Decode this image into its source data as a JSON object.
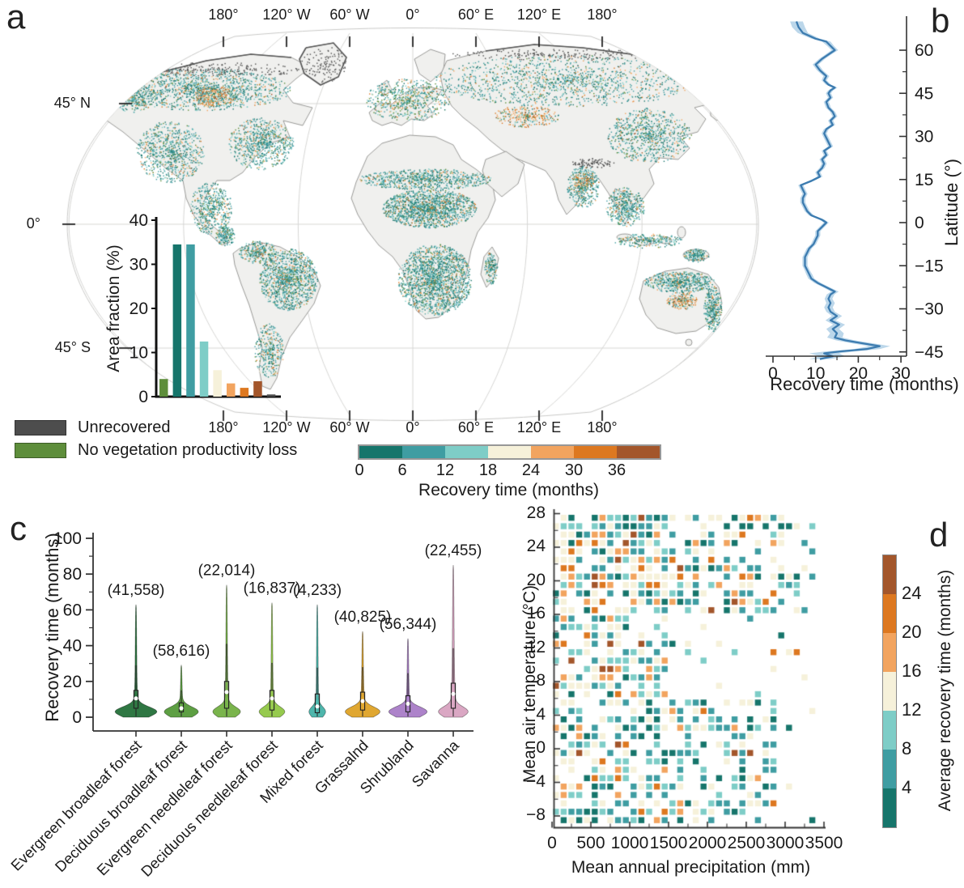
{
  "chart_data": [
    {
      "type": "map",
      "panel": "a",
      "description": "Global map of vegetation recovery time after drought",
      "top_axis_labels": [
        "180°",
        "120° W",
        "60° W",
        "0°",
        "60° E",
        "120° E",
        "180°"
      ],
      "bottom_axis_labels": [
        "180°",
        "120° W",
        "60° W",
        "0°",
        "60° E",
        "120° E",
        "180°"
      ],
      "left_axis_labels": [
        "45° N",
        "0°",
        "45° S"
      ],
      "legend": [
        {
          "label": "Unrecovered",
          "color": "#4d4d4d"
        },
        {
          "label": "No vegetation productivity loss",
          "color": "#5e8e3b"
        }
      ],
      "colorbar": {
        "title": "Recovery time (months)",
        "ticks": [
          "0",
          "6",
          "12",
          "18",
          "24",
          "30",
          "36"
        ],
        "colors": [
          "#16756b",
          "#3f9da2",
          "#7ecdc7",
          "#f6f1da",
          "#f2a45f",
          "#dd7820",
          "#a3562b"
        ]
      },
      "inset": {
        "type": "bar",
        "ylabel": "Area fraction (%)",
        "yticks": [
          0,
          10,
          20,
          30,
          40
        ],
        "ylim": [
          0,
          40
        ],
        "categories": [
          "No loss",
          "0-6",
          "6-12",
          "12-18",
          "18-24",
          "24-30",
          "30-36",
          ">36",
          "Unrecovered"
        ],
        "values": [
          4,
          34.5,
          34.5,
          12.5,
          6,
          3,
          2,
          3.5,
          0.5
        ],
        "colors": [
          "#5e8e3b",
          "#16756b",
          "#3f9da2",
          "#7ecdc7",
          "#f6f1da",
          "#f2a45f",
          "#dd7820",
          "#a3562b",
          "#4d4d4d"
        ]
      },
      "speckle_palettes": {
        "main": [
          [
            "#16756b",
            26
          ],
          [
            "#3f9da2",
            34
          ],
          [
            "#7ecdc7",
            14
          ],
          [
            "#5e8e3b",
            8
          ],
          [
            "#f6f1da",
            7
          ],
          [
            "#f2a45f",
            6
          ],
          [
            "#dd7820",
            3
          ],
          [
            "#a3562b",
            2
          ]
        ],
        "orange": [
          [
            "#16756b",
            8
          ],
          [
            "#3f9da2",
            14
          ],
          [
            "#7ecdc7",
            8
          ],
          [
            "#5e8e3b",
            4
          ],
          [
            "#f6f1da",
            16
          ],
          [
            "#f2a45f",
            22
          ],
          [
            "#dd7820",
            18
          ],
          [
            "#a3562b",
            10
          ]
        ],
        "euro": [
          [
            "#16756b",
            18
          ],
          [
            "#3f9da2",
            26
          ],
          [
            "#7ecdc7",
            12
          ],
          [
            "#5e8e3b",
            22
          ],
          [
            "#f6f1da",
            10
          ],
          [
            "#f2a45f",
            8
          ],
          [
            "#dd7820",
            3
          ],
          [
            "#a3562b",
            1
          ]
        ],
        "dark": [
          [
            "#4d4d4d",
            1
          ]
        ]
      },
      "speckle_regions": [
        [
          185,
          95,
          115,
          26,
          1500,
          "main"
        ],
        [
          105,
          105,
          28,
          18,
          320,
          "main"
        ],
        [
          150,
          172,
          42,
          38,
          850,
          "main"
        ],
        [
          262,
          162,
          40,
          32,
          800,
          "main"
        ],
        [
          205,
          104,
          26,
          13,
          380,
          "orange"
        ],
        [
          200,
          242,
          26,
          32,
          550,
          "main"
        ],
        [
          218,
          276,
          12,
          12,
          200,
          "main"
        ],
        [
          296,
          330,
          36,
          38,
          1300,
          "main"
        ],
        [
          258,
          296,
          24,
          14,
          320,
          "main"
        ],
        [
          272,
          418,
          18,
          34,
          380,
          "main"
        ],
        [
          465,
          206,
          82,
          13,
          850,
          "main"
        ],
        [
          470,
          242,
          58,
          24,
          1700,
          "main"
        ],
        [
          477,
          330,
          46,
          44,
          2000,
          "main"
        ],
        [
          546,
          316,
          8,
          20,
          180,
          "main"
        ],
        [
          443,
          108,
          52,
          26,
          700,
          "euro"
        ],
        [
          640,
          84,
          165,
          32,
          1500,
          "main"
        ],
        [
          590,
          128,
          40,
          14,
          350,
          "orange"
        ],
        [
          742,
          152,
          52,
          34,
          850,
          "main"
        ],
        [
          660,
          215,
          20,
          26,
          450,
          "main"
        ],
        [
          660,
          208,
          14,
          10,
          150,
          "orange"
        ],
        [
          712,
          240,
          24,
          24,
          500,
          "main"
        ],
        [
          740,
          282,
          42,
          9,
          260,
          "main"
        ],
        [
          800,
          300,
          16,
          8,
          200,
          "main"
        ],
        [
          779,
          333,
          44,
          13,
          650,
          "main"
        ],
        [
          820,
          366,
          11,
          28,
          380,
          "main"
        ],
        [
          782,
          356,
          19,
          11,
          320,
          "orange"
        ],
        [
          856,
          402,
          8,
          16,
          120,
          "main"
        ],
        [
          200,
          70,
          130,
          8,
          220,
          "dark"
        ],
        [
          640,
          52,
          150,
          7,
          200,
          "dark"
        ],
        [
          340,
          64,
          28,
          22,
          120,
          "dark"
        ],
        [
          672,
          186,
          26,
          6,
          90,
          "dark"
        ]
      ],
      "land_color": "#f0f0ee",
      "coast_color": "#8e8e8c",
      "grid_color": "#d6d6d4"
    },
    {
      "type": "line",
      "panel": "b",
      "xlabel": "Recovery time (months)",
      "ylabel": "Latitude (°)",
      "xticks": [
        0,
        10,
        20,
        30
      ],
      "yticks": [
        60,
        45,
        30,
        15,
        0,
        -15,
        -30,
        -45
      ],
      "xlim": [
        0,
        32
      ],
      "ylim": [
        -50,
        70
      ],
      "line_color": "#3d7cb0",
      "band_color": "#b5d3e8",
      "points": [
        [
          70,
          5.5,
          1.5
        ],
        [
          68,
          6,
          1.5
        ],
        [
          66,
          7,
          1.2
        ],
        [
          64,
          10,
          1
        ],
        [
          63,
          12.5,
          1
        ],
        [
          61.5,
          13.5,
          0.8
        ],
        [
          60,
          14.5,
          0.8
        ],
        [
          58.5,
          13,
          0.7
        ],
        [
          57,
          11.5,
          0.7
        ],
        [
          55,
          10,
          0.7
        ],
        [
          53,
          11,
          0.7
        ],
        [
          51,
          12.5,
          0.7
        ],
        [
          49.5,
          12,
          0.6
        ],
        [
          48,
          13,
          0.6
        ],
        [
          47,
          14.5,
          0.6
        ],
        [
          46,
          13.5,
          0.6
        ],
        [
          45,
          13,
          0.6
        ],
        [
          43.5,
          13.5,
          0.6
        ],
        [
          42,
          12.5,
          0.6
        ],
        [
          40,
          13,
          0.6
        ],
        [
          38.5,
          14,
          0.6
        ],
        [
          37,
          14.5,
          0.6
        ],
        [
          35.5,
          13.5,
          0.6
        ],
        [
          34,
          14,
          0.6
        ],
        [
          32.5,
          12.5,
          0.6
        ],
        [
          31,
          12,
          0.6
        ],
        [
          29.5,
          12.5,
          0.6
        ],
        [
          28,
          13,
          0.6
        ],
        [
          26.5,
          13.5,
          0.6
        ],
        [
          25,
          12,
          0.6
        ],
        [
          23.5,
          12.5,
          0.6
        ],
        [
          22,
          11.5,
          0.6
        ],
        [
          20.5,
          12,
          0.6
        ],
        [
          19,
          11.5,
          0.6
        ],
        [
          17.5,
          10.5,
          0.6
        ],
        [
          16,
          11,
          0.6
        ],
        [
          14.5,
          9,
          0.6
        ],
        [
          13,
          6.5,
          0.6
        ],
        [
          11.5,
          7,
          0.6
        ],
        [
          10,
          7.5,
          0.6
        ],
        [
          8.5,
          7,
          0.6
        ],
        [
          7,
          7,
          0.6
        ],
        [
          5.5,
          7.5,
          0.6
        ],
        [
          4,
          8,
          0.6
        ],
        [
          2.5,
          9,
          0.6
        ],
        [
          1,
          11.5,
          0.6
        ],
        [
          0,
          12.5,
          0.6
        ],
        [
          -1.5,
          11.5,
          0.6
        ],
        [
          -3,
          10.5,
          0.6
        ],
        [
          -4.5,
          10.5,
          0.6
        ],
        [
          -6,
          10,
          0.6
        ],
        [
          -7.5,
          9.5,
          0.6
        ],
        [
          -9,
          8.5,
          0.6
        ],
        [
          -10.5,
          8,
          0.6
        ],
        [
          -12,
          7.5,
          0.6
        ],
        [
          -13.5,
          7.5,
          0.6
        ],
        [
          -15,
          7.5,
          0.6
        ],
        [
          -16.5,
          8,
          0.6
        ],
        [
          -18,
          8.5,
          0.7
        ],
        [
          -19.5,
          9,
          0.7
        ],
        [
          -21,
          10.5,
          0.8
        ],
        [
          -22.5,
          12.5,
          0.8
        ],
        [
          -24,
          14.5,
          0.9
        ],
        [
          -25,
          13.5,
          0.9
        ],
        [
          -26.5,
          13,
          0.9
        ],
        [
          -28,
          13.5,
          1
        ],
        [
          -29.5,
          13,
          1
        ],
        [
          -31,
          13.5,
          1
        ],
        [
          -32.5,
          15,
          1.2
        ],
        [
          -34,
          13.5,
          1.2
        ],
        [
          -35.5,
          15.5,
          1.4
        ],
        [
          -37,
          14,
          1.5
        ],
        [
          -38.5,
          15,
          1.6
        ],
        [
          -40,
          14.5,
          1.8
        ],
        [
          -41,
          17,
          2.2
        ],
        [
          -42,
          21,
          2.5
        ],
        [
          -43,
          25,
          2.5
        ],
        [
          -44,
          22,
          3
        ],
        [
          -44.8,
          16,
          3.5
        ],
        [
          -45.5,
          12,
          3.5
        ],
        [
          -46.5,
          14,
          3
        ],
        [
          -47.5,
          11,
          2.5
        ]
      ]
    },
    {
      "type": "violin",
      "panel": "c",
      "ylabel": "Recovery time (months)",
      "yticks": [
        0,
        20,
        40,
        60,
        80,
        100
      ],
      "ylim": [
        0,
        100
      ],
      "categories": [
        "Evergreen broadleaf forest",
        "Deciduous broadleaf forest",
        "Evergreen needleleaf forest",
        "Deciduous needleleaf forest",
        "Mixed forest",
        "Grassalnd",
        "Shrubland",
        "Savanna"
      ],
      "counts": [
        "(41,558)",
        "(58,616)",
        "(22,014)",
        "(16,837)",
        "(4,233)",
        "(40,825)",
        "(56,344)",
        "(22,455)"
      ],
      "colors": [
        "#1d6b33",
        "#4f9733",
        "#6fae3d",
        "#8dc63f",
        "#3fb0a5",
        "#dd9f1f",
        "#a678c5",
        "#d79fbe"
      ],
      "stats": [
        {
          "max": 63,
          "median": 10.5,
          "q1": 5,
          "q3": 15,
          "w": 22,
          "tau": 7
        },
        {
          "max": 29,
          "median": 5,
          "q1": 3,
          "q3": 8,
          "w": 18,
          "tau": 5
        },
        {
          "max": 74,
          "median": 14,
          "q1": 5,
          "q3": 20,
          "w": 14,
          "tau": 9
        },
        {
          "max": 64,
          "median": 10.5,
          "q1": 4,
          "q3": 15,
          "w": 13,
          "tau": 8
        },
        {
          "max": 63,
          "median": 6,
          "q1": 2.5,
          "q3": 13,
          "w": 8,
          "tau": 8
        },
        {
          "max": 48,
          "median": 9,
          "q1": 4,
          "q3": 14,
          "w": 18,
          "tau": 8
        },
        {
          "max": 44,
          "median": 7.5,
          "q1": 3,
          "q3": 12,
          "w": 20,
          "tau": 7
        },
        {
          "max": 85,
          "median": 13,
          "q1": 5,
          "q3": 19,
          "w": 15,
          "tau": 13
        }
      ]
    },
    {
      "type": "heatmap",
      "panel": "d",
      "xlabel": "Mean annual precipitation (mm)",
      "ylabel": "Mean air temperature (°C)",
      "xticks": [
        0,
        500,
        1000,
        1500,
        2000,
        2500,
        3000,
        3500
      ],
      "yticks": [
        28,
        24,
        20,
        16,
        12,
        8,
        4,
        0,
        -4,
        -8
      ],
      "xlim": [
        0,
        3500
      ],
      "ylim": [
        -10,
        28
      ],
      "colorbar": {
        "title": "Average recovery time (months)",
        "ticks": [
          "24",
          "20",
          "16",
          "12",
          "8",
          "4"
        ],
        "colors_top_to_bottom": [
          "#a3562b",
          "#dd7820",
          "#f2a45f",
          "#f6f1da",
          "#7ecdc7",
          "#3f9da2",
          "#16756b"
        ]
      },
      "cell_palettes": {
        "default": [
          [
            "#16756b",
            14
          ],
          [
            "#3f9da2",
            26
          ],
          [
            "#7ecdc7",
            16
          ],
          [
            "#f6f1da",
            26
          ],
          [
            "#f2a45f",
            10
          ],
          [
            "#dd7820",
            5
          ],
          [
            "#a3562b",
            3
          ]
        ],
        "warm_dry": [
          [
            "#16756b",
            10
          ],
          [
            "#3f9da2",
            18
          ],
          [
            "#7ecdc7",
            10
          ],
          [
            "#f6f1da",
            22
          ],
          [
            "#f2a45f",
            20
          ],
          [
            "#dd7820",
            12
          ],
          [
            "#a3562b",
            8
          ]
        ],
        "cold": [
          [
            "#16756b",
            16
          ],
          [
            "#3f9da2",
            30
          ],
          [
            "#7ecdc7",
            22
          ],
          [
            "#f6f1da",
            22
          ],
          [
            "#f2a45f",
            7
          ],
          [
            "#dd7820",
            2
          ],
          [
            "#a3562b",
            1
          ]
        ]
      }
    }
  ]
}
